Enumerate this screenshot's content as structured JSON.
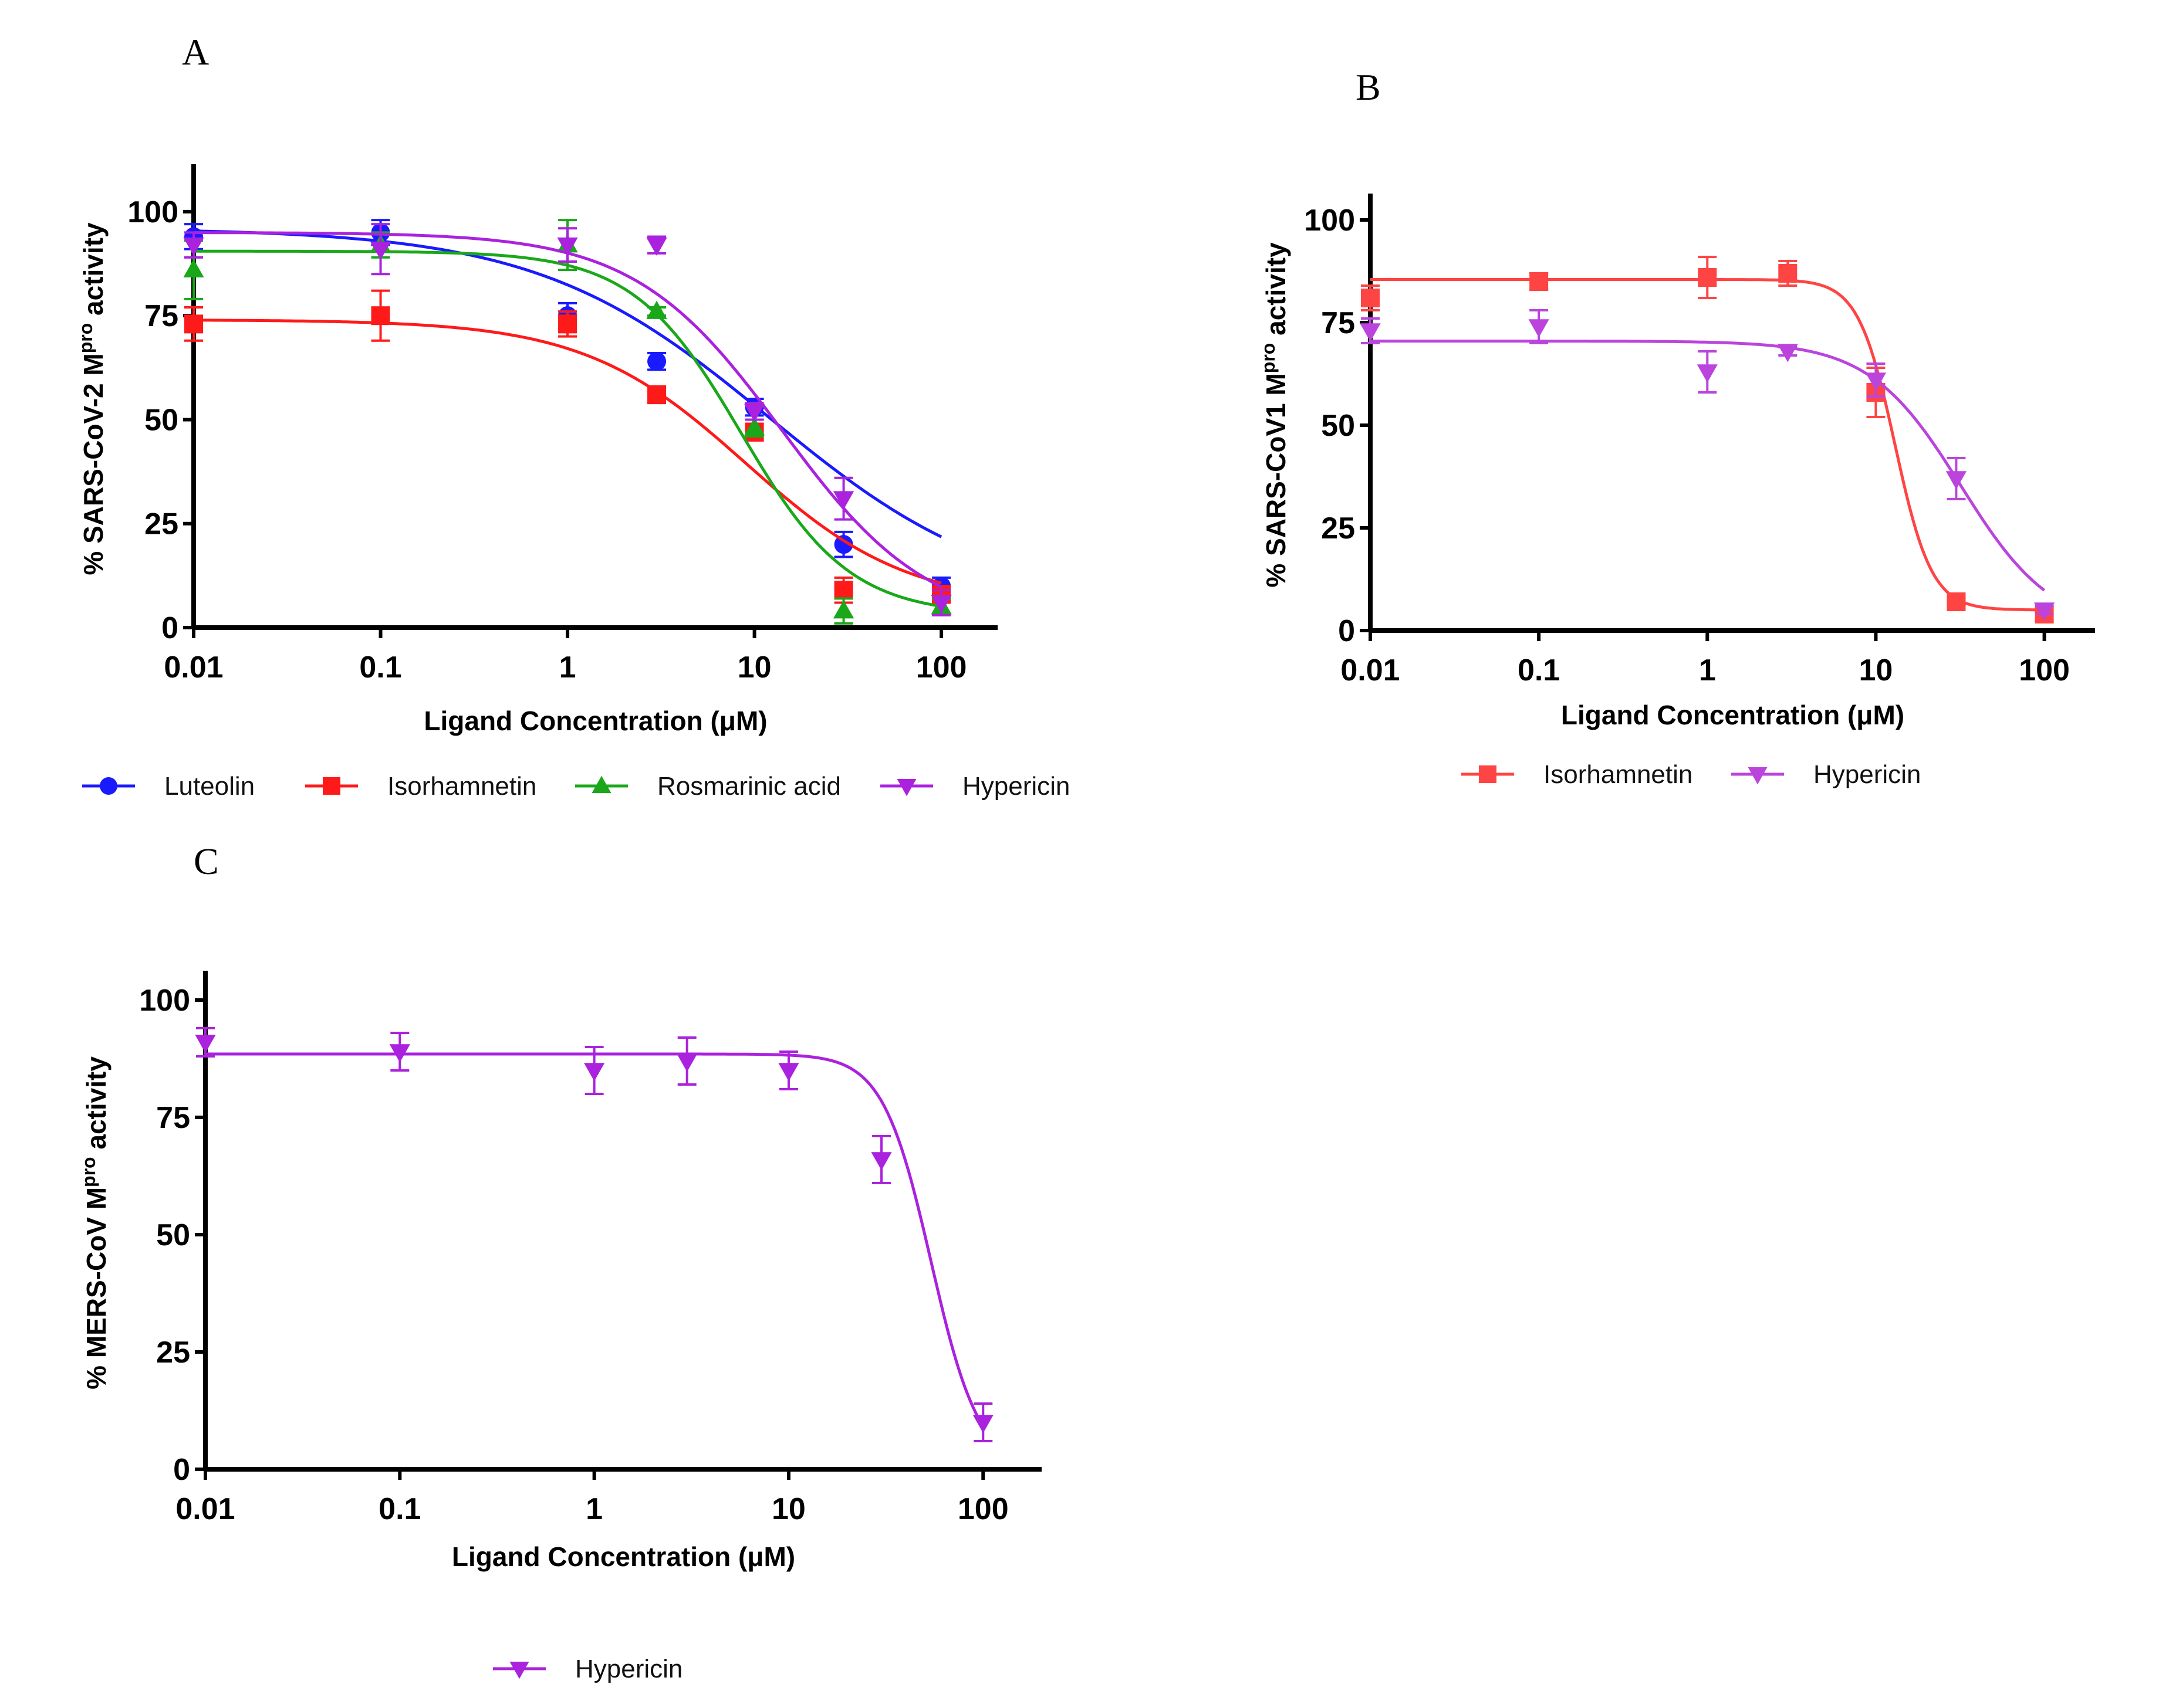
{
  "chart_data": [
    {
      "id": "A",
      "type": "scatter",
      "panel_label": "A",
      "xlabel": "Ligand Concentration (μM)",
      "ylabel": "% SARS-CoV-2 M",
      "ylabel_sup": "pro",
      "ylabel_tail": " activity",
      "xscale": "log",
      "xlim": [
        0.01,
        200
      ],
      "ylim": [
        0,
        110
      ],
      "x_ticks": [
        0.01,
        0.1,
        1,
        10,
        100
      ],
      "x_tick_labels": [
        "0.01",
        "0.1",
        "1",
        "10",
        "100"
      ],
      "y_ticks": [
        0,
        25,
        50,
        75,
        100
      ],
      "y_tick_labels": [
        "0",
        "25",
        "50",
        "75",
        "100"
      ],
      "legend_position": "bottom",
      "series": [
        {
          "name": "Luteolin",
          "color": "#1a1aff",
          "marker": "circle",
          "x": [
            0.01,
            0.1,
            1,
            3,
            10,
            30,
            100
          ],
          "y": [
            94,
            95,
            75,
            64,
            53,
            20,
            10
          ],
          "err": [
            3,
            3,
            3,
            2,
            2,
            3,
            2
          ],
          "fit": {
            "top": 96,
            "bottom": 5,
            "ic50": 12,
            "hill": 0.7
          }
        },
        {
          "name": "Isorhamnetin",
          "color": "#ff1a1a",
          "marker": "square",
          "x": [
            0.01,
            0.1,
            1,
            3,
            10,
            30,
            100
          ],
          "y": [
            73,
            75,
            73,
            56,
            47,
            9,
            8
          ],
          "err": [
            4,
            6,
            3,
            2,
            2,
            3,
            2
          ],
          "fit": {
            "top": 74,
            "bottom": 5,
            "ic50": 9,
            "hill": 1.0
          }
        },
        {
          "name": "Rosmarinic acid",
          "color": "#1aa81a",
          "marker": "triangle-up",
          "x": [
            0.01,
            0.1,
            1,
            3,
            10,
            30,
            100
          ],
          "y": [
            86,
            92,
            92,
            76,
            48,
            4,
            5
          ],
          "err": [
            7,
            3,
            6,
            1,
            2,
            3,
            2
          ],
          "fit": {
            "top": 90.5,
            "bottom": 3,
            "ic50": 8.5,
            "hill": 1.5
          }
        },
        {
          "name": "Hypericin",
          "color": "#aa22dd",
          "marker": "triangle-down",
          "x": [
            0.01,
            0.1,
            1,
            3,
            10,
            30,
            100
          ],
          "y": [
            92,
            91,
            92,
            92,
            52,
            31,
            6
          ],
          "err": [
            3,
            6,
            4,
            2,
            2,
            5,
            3
          ],
          "fit": {
            "top": 95,
            "bottom": 0,
            "ic50": 14,
            "hill": 1.1
          }
        }
      ]
    },
    {
      "id": "B",
      "type": "scatter",
      "panel_label": "B",
      "xlabel": "Ligand Concentration (μM)",
      "ylabel": "% SARS-CoV1 M",
      "ylabel_sup": "pro",
      "ylabel_tail": " activity",
      "xscale": "log",
      "xlim": [
        0.01,
        200
      ],
      "ylim": [
        0,
        105
      ],
      "x_ticks": [
        0.01,
        0.1,
        1,
        10,
        100
      ],
      "x_tick_labels": [
        "0.01",
        "0.1",
        "1",
        "10",
        "100"
      ],
      "y_ticks": [
        0,
        25,
        50,
        75,
        100
      ],
      "y_tick_labels": [
        "0",
        "25",
        "50",
        "75",
        "100"
      ],
      "legend_position": "bottom",
      "series": [
        {
          "name": "Isorhamnetin",
          "color": "#ff4444",
          "marker": "square",
          "x": [
            0.01,
            0.1,
            1,
            3,
            10,
            30,
            100
          ],
          "y": [
            81,
            85,
            86,
            87,
            58,
            7,
            4
          ],
          "err": [
            3,
            2,
            5,
            3,
            6,
            1,
            2
          ],
          "fit": {
            "top": 85.5,
            "bottom": 5,
            "ic50": 13,
            "hill": 4.0
          }
        },
        {
          "name": "Hypericin",
          "color": "#bb44dd",
          "marker": "triangle-down",
          "x": [
            0.01,
            0.1,
            1,
            3,
            10,
            30,
            100
          ],
          "y": [
            73,
            74,
            63,
            68,
            61,
            37,
            5
          ],
          "err": [
            3,
            4,
            5,
            1,
            4,
            5,
            1
          ],
          "fit": {
            "top": 70.5,
            "bottom": 0,
            "ic50": 32,
            "hill": 1.6
          }
        }
      ]
    },
    {
      "id": "C",
      "type": "scatter",
      "panel_label": "C",
      "xlabel": "Ligand Concentration (μM)",
      "ylabel": "% MERS-CoV M",
      "ylabel_sup": "pro",
      "ylabel_tail": " activity",
      "xscale": "log",
      "xlim": [
        0.01,
        200
      ],
      "ylim": [
        0,
        105
      ],
      "x_ticks": [
        0.01,
        0.1,
        1,
        10,
        100
      ],
      "x_tick_labels": [
        "0.01",
        "0.1",
        "1",
        "10",
        "100"
      ],
      "y_ticks": [
        0,
        25,
        50,
        75,
        100
      ],
      "y_tick_labels": [
        "0",
        "25",
        "50",
        "75",
        "100"
      ],
      "legend_position": "bottom",
      "series": [
        {
          "name": "Hypericin",
          "color": "#aa22dd",
          "marker": "triangle-down",
          "x": [
            0.01,
            0.1,
            1,
            3,
            10,
            30,
            100
          ],
          "y": [
            91,
            89,
            85,
            87,
            85,
            66,
            10
          ],
          "err": [
            3,
            4,
            5,
            5,
            4,
            5,
            4
          ],
          "fit": {
            "top": 88.5,
            "bottom": 0,
            "ic50": 54,
            "hill": 3.5
          }
        }
      ]
    }
  ]
}
